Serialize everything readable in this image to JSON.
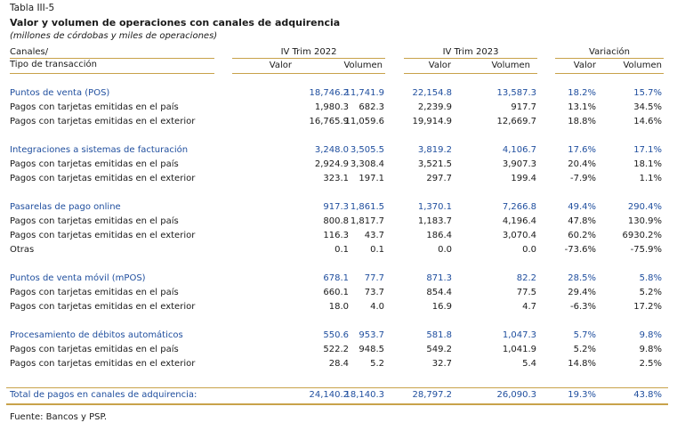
{
  "table_label": "Tabla III-5",
  "title": "Valor y volumen de operaciones con canales de adquirencia",
  "subtitle": "(millones de córdobas y miles de operaciones)",
  "header": {
    "col_label_line1": "Canales/",
    "col_label_line2": "Tipo de transacción",
    "groups": [
      "IV Trim 2022",
      "IV Trim 2023",
      "Variación"
    ],
    "sub": [
      "Valor",
      "Volumen",
      "Valor",
      "Volumen",
      "Valor",
      "Volumen"
    ]
  },
  "rows": [
    {
      "label": "Puntos de venta (POS)",
      "type": "cat",
      "values": [
        "18,746.2",
        "11,741.9",
        "22,154.8",
        "13,587.3",
        "18.2%",
        "15.7%"
      ]
    },
    {
      "label": "Pagos con tarjetas emitidas en el país",
      "type": "item",
      "values": [
        "1,980.3",
        "682.3",
        "2,239.9",
        "917.7",
        "13.1%",
        "34.5%"
      ]
    },
    {
      "label": "Pagos con tarjetas emitidas en el exterior",
      "type": "item",
      "values": [
        "16,765.9",
        "11,059.6",
        "19,914.9",
        "12,669.7",
        "18.8%",
        "14.6%"
      ]
    },
    {
      "label": "Integraciones a sistemas de facturación",
      "type": "cat",
      "values": [
        "3,248.0",
        "3,505.5",
        "3,819.2",
        "4,106.7",
        "17.6%",
        "17.1%"
      ]
    },
    {
      "label": "Pagos con tarjetas emitidas en el país",
      "type": "item",
      "values": [
        "2,924.9",
        "3,308.4",
        "3,521.5",
        "3,907.3",
        "20.4%",
        "18.1%"
      ]
    },
    {
      "label": "Pagos con tarjetas emitidas en el exterior",
      "type": "item",
      "values": [
        "323.1",
        "197.1",
        "297.7",
        "199.4",
        "-7.9%",
        "1.1%"
      ]
    },
    {
      "label": "Pasarelas de pago online",
      "type": "cat",
      "values": [
        "917.3",
        "1,861.5",
        "1,370.1",
        "7,266.8",
        "49.4%",
        "290.4%"
      ]
    },
    {
      "label": "Pagos con tarjetas emitidas en el país",
      "type": "item",
      "values": [
        "800.8",
        "1,817.7",
        "1,183.7",
        "4,196.4",
        "47.8%",
        "130.9%"
      ]
    },
    {
      "label": "Pagos con tarjetas emitidas en el exterior",
      "type": "item",
      "values": [
        "116.3",
        "43.7",
        "186.4",
        "3,070.4",
        "60.2%",
        "6930.2%"
      ]
    },
    {
      "label": "Otras",
      "type": "item",
      "values": [
        "0.1",
        "0.1",
        "0.0",
        "0.0",
        "-73.6%",
        "-75.9%"
      ]
    },
    {
      "label": "Puntos de venta móvil (mPOS)",
      "type": "cat",
      "values": [
        "678.1",
        "77.7",
        "871.3",
        "82.2",
        "28.5%",
        "5.8%"
      ]
    },
    {
      "label": "Pagos con tarjetas emitidas en el país",
      "type": "item",
      "values": [
        "660.1",
        "73.7",
        "854.4",
        "77.5",
        "29.4%",
        "5.2%"
      ]
    },
    {
      "label": "Pagos con tarjetas emitidas en el exterior",
      "type": "item",
      "values": [
        "18.0",
        "4.0",
        "16.9",
        "4.7",
        "-6.3%",
        "17.2%"
      ]
    },
    {
      "label": "Procesamiento de débitos automáticos",
      "type": "cat",
      "values": [
        "550.6",
        "953.7",
        "581.8",
        "1,047.3",
        "5.7%",
        "9.8%"
      ]
    },
    {
      "label": "Pagos con tarjetas emitidas en el país",
      "type": "item",
      "values": [
        "522.2",
        "948.5",
        "549.2",
        "1,041.9",
        "5.2%",
        "9.8%"
      ]
    },
    {
      "label": "Pagos con tarjetas emitidas en el exterior",
      "type": "item",
      "values": [
        "28.4",
        "5.2",
        "32.7",
        "5.4",
        "14.8%",
        "2.5%"
      ]
    }
  ],
  "total": {
    "label": "Total de pagos en canales de adquirencia:",
    "values": [
      "24,140.2",
      "18,140.3",
      "28,797.2",
      "26,090.3",
      "19.3%",
      "43.8%"
    ]
  },
  "footer": "Fuente: Bancos y PSP.",
  "colors": {
    "category_text": "#1f4e9e",
    "rule": "#c8a24a"
  }
}
